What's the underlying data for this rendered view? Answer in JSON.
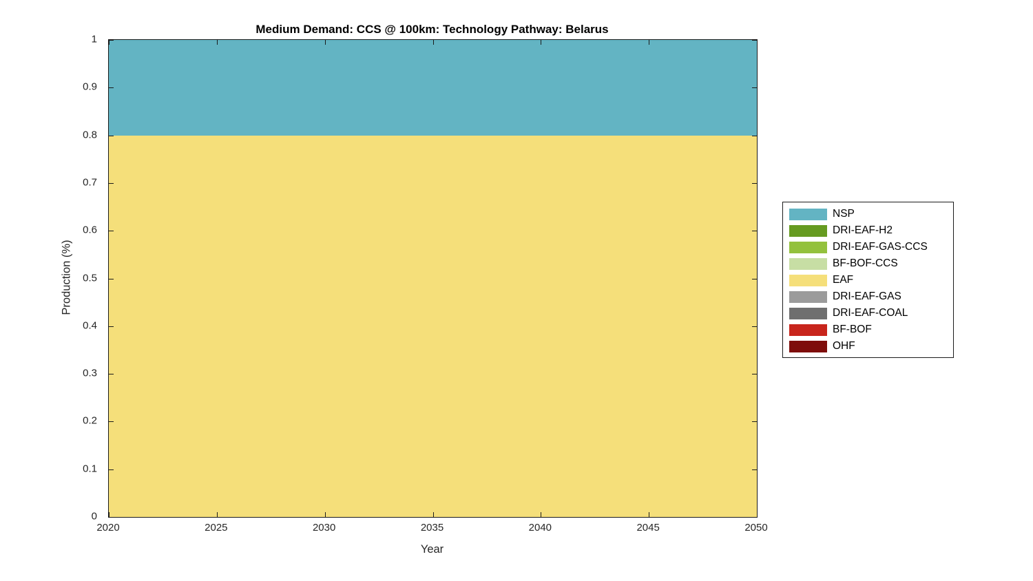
{
  "chart_data": {
    "type": "area",
    "stacked": true,
    "title": "Medium Demand: CCS @ 100km: Technology Pathway: Belarus",
    "xlabel": "Year",
    "ylabel": "Production (%)",
    "xlim": [
      2020,
      2050
    ],
    "ylim": [
      0,
      1
    ],
    "xticks": [
      2020,
      2025,
      2030,
      2035,
      2040,
      2045,
      2050
    ],
    "yticks": [
      0,
      0.1,
      0.2,
      0.3,
      0.4,
      0.5,
      0.6,
      0.7,
      0.8,
      0.9,
      1
    ],
    "ytick_labels": [
      "0",
      "0.1",
      "0.2",
      "0.3",
      "0.4",
      "0.5",
      "0.6",
      "0.7",
      "0.8",
      "0.9",
      "1"
    ],
    "grid": false,
    "box": true,
    "axis_color": "#1a1a1a",
    "x": [
      2020,
      2025,
      2030,
      2035,
      2040,
      2045,
      2050
    ],
    "series": [
      {
        "name": "NSP",
        "color": "#63B4C3",
        "values": [
          0.2,
          0.2,
          0.2,
          0.2,
          0.2,
          0.2,
          0.2
        ]
      },
      {
        "name": "DRI-EAF-H2",
        "color": "#669B21",
        "values": [
          0,
          0,
          0,
          0,
          0,
          0,
          0
        ]
      },
      {
        "name": "DRI-EAF-GAS-CCS",
        "color": "#93C13D",
        "values": [
          0,
          0,
          0,
          0,
          0,
          0,
          0
        ]
      },
      {
        "name": "BF-BOF-CCS",
        "color": "#C7DEA4",
        "values": [
          0,
          0,
          0,
          0,
          0,
          0,
          0
        ]
      },
      {
        "name": "EAF",
        "color": "#F5DF7A",
        "values": [
          0.8,
          0.8,
          0.8,
          0.8,
          0.8,
          0.8,
          0.8
        ]
      },
      {
        "name": "DRI-EAF-GAS",
        "color": "#9B9B9B",
        "values": [
          0,
          0,
          0,
          0,
          0,
          0,
          0
        ]
      },
      {
        "name": "DRI-EAF-COAL",
        "color": "#6F6F6F",
        "values": [
          0,
          0,
          0,
          0,
          0,
          0,
          0
        ]
      },
      {
        "name": "BF-BOF",
        "color": "#C8251C",
        "values": [
          0,
          0,
          0,
          0,
          0,
          0,
          0
        ]
      },
      {
        "name": "OHF",
        "color": "#7E0D0B",
        "values": [
          0,
          0,
          0,
          0,
          0,
          0,
          0
        ]
      }
    ],
    "bands": [
      {
        "name": "EAF",
        "from": 0.0,
        "to": 0.8,
        "color": "#F5DF7A"
      },
      {
        "name": "NSP",
        "from": 0.8,
        "to": 1.0,
        "color": "#63B4C3"
      }
    ],
    "legend": {
      "position": "outside-right",
      "entries": [
        {
          "label": "NSP",
          "color": "#63B4C3"
        },
        {
          "label": "DRI-EAF-H2",
          "color": "#669B21"
        },
        {
          "label": "DRI-EAF-GAS-CCS",
          "color": "#93C13D"
        },
        {
          "label": "BF-BOF-CCS",
          "color": "#C7DEA4"
        },
        {
          "label": "EAF",
          "color": "#F5DF7A"
        },
        {
          "label": "DRI-EAF-GAS",
          "color": "#9B9B9B"
        },
        {
          "label": "DRI-EAF-COAL",
          "color": "#6F6F6F"
        },
        {
          "label": "BF-BOF",
          "color": "#C8251C"
        },
        {
          "label": "OHF",
          "color": "#7E0D0B"
        }
      ]
    }
  }
}
